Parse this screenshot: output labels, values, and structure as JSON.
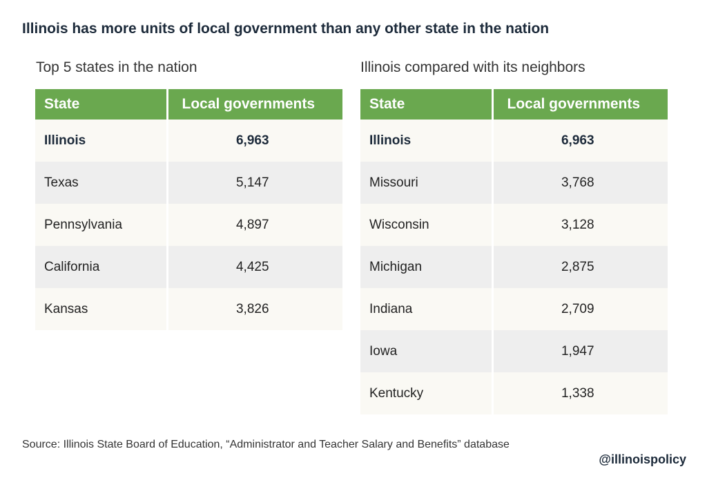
{
  "title": "Illinois has more units of local government than any other state in the nation",
  "chart_data": [
    {
      "type": "table",
      "subtitle": "Top 5 states in the nation",
      "columns": [
        "State",
        "Local governments"
      ],
      "rows": [
        {
          "state": "Illinois",
          "value": "6,963"
        },
        {
          "state": "Texas",
          "value": "5,147"
        },
        {
          "state": "Pennsylvania",
          "value": "4,897"
        },
        {
          "state": "California",
          "value": "4,425"
        },
        {
          "state": "Kansas",
          "value": "3,826"
        }
      ],
      "highlight_row": 0
    },
    {
      "type": "table",
      "subtitle": "Illinois compared with its neighbors",
      "columns": [
        "State",
        "Local governments"
      ],
      "rows": [
        {
          "state": "Illinois",
          "value": "6,963"
        },
        {
          "state": "Missouri",
          "value": "3,768"
        },
        {
          "state": "Wisconsin",
          "value": "3,128"
        },
        {
          "state": "Michigan",
          "value": "2,875"
        },
        {
          "state": "Indiana",
          "value": "2,709"
        },
        {
          "state": "Iowa",
          "value": "1,947"
        },
        {
          "state": "Kentucky",
          "value": "1,338"
        }
      ],
      "highlight_row": 0
    }
  ],
  "colors": {
    "header_green": "#6aa84f",
    "row_light": "#faf9f4",
    "row_grey": "#eeeeee",
    "title_navy": "#1c2a3a"
  },
  "source": "Source: Illinois State Board of Education, “Administrator and Teacher Salary and Benefits” database",
  "handle": "@illinoispolicy"
}
